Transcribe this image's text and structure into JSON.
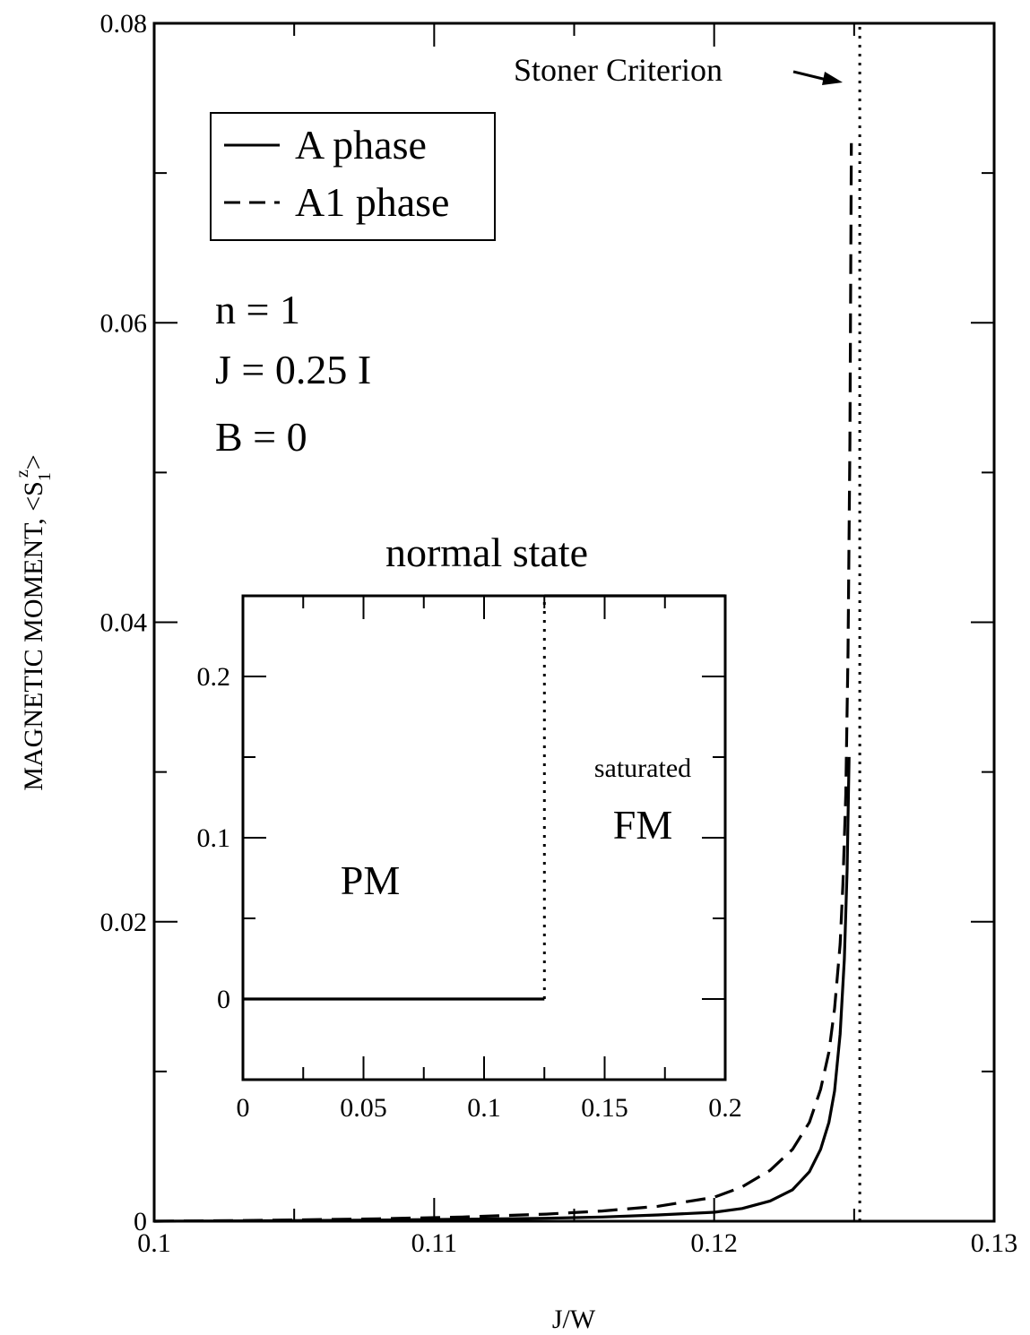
{
  "chart_data": [
    {
      "type": "line",
      "xlabel": "J/W",
      "ylabel": "MAGNETIC MOMENT, <S",
      "ylabel_sub": "1",
      "ylabel_sup": "z",
      "ylabel_close": ">",
      "xlim": [
        0.1,
        0.13
      ],
      "ylim": [
        0,
        0.08
      ],
      "xticks": [
        {
          "value": 0.1,
          "label": "0.1"
        },
        {
          "value": 0.11,
          "label": "0.11"
        },
        {
          "value": 0.12,
          "label": "0.12"
        },
        {
          "value": 0.13,
          "label": "0.13"
        }
      ],
      "yticks": [
        {
          "value": 0,
          "label": "0"
        },
        {
          "value": 0.02,
          "label": "0.02"
        },
        {
          "value": 0.04,
          "label": "0.04"
        },
        {
          "value": 0.06,
          "label": "0.06"
        },
        {
          "value": 0.08,
          "label": "0.08"
        }
      ],
      "grid": false,
      "legend": {
        "placement": "top-left",
        "entries": [
          {
            "label": "A phase",
            "style": "solid"
          },
          {
            "label": "A1 phase",
            "style": "dashed"
          }
        ]
      },
      "series": [
        {
          "name": "A phase",
          "style": "solid",
          "x": [
            0.1,
            0.104,
            0.108,
            0.111,
            0.114,
            0.116,
            0.118,
            0.12,
            0.121,
            0.122,
            0.1228,
            0.1234,
            0.1238,
            0.1241,
            0.1243,
            0.1245,
            0.12465,
            0.12475,
            0.12482
          ],
          "y": [
            0,
            3e-05,
            8e-05,
            0.00013,
            0.0002,
            0.00028,
            0.00042,
            0.0006,
            0.00085,
            0.00135,
            0.0021,
            0.0033,
            0.0048,
            0.0066,
            0.0087,
            0.0125,
            0.0175,
            0.0235,
            0.031
          ]
        },
        {
          "name": "A1 phase",
          "style": "dashed",
          "x": [
            0.1,
            0.104,
            0.108,
            0.111,
            0.114,
            0.116,
            0.118,
            0.12,
            0.121,
            0.122,
            0.1228,
            0.1234,
            0.1238,
            0.1241,
            0.1243,
            0.1245,
            0.1246,
            0.1247,
            0.12478,
            0.12485,
            0.1249
          ],
          "y": [
            0,
            6e-05,
            0.00016,
            0.00028,
            0.00047,
            0.00068,
            0.001,
            0.0016,
            0.0023,
            0.0034,
            0.0048,
            0.0066,
            0.0088,
            0.0113,
            0.0142,
            0.0185,
            0.0225,
            0.0285,
            0.038,
            0.052,
            0.072
          ]
        },
        {
          "name": "Stoner Criterion",
          "style": "dotted",
          "x": [
            0.1252,
            0.1252
          ],
          "y": [
            0,
            0.08
          ]
        }
      ],
      "annotations": [
        {
          "text": "Stoner Criterion",
          "arrow_to": [
            0.1252,
            0.0765
          ]
        },
        {
          "text": "n = 1"
        },
        {
          "text": "J = 0.25 I"
        },
        {
          "text": "B = 0"
        }
      ]
    },
    {
      "type": "line",
      "title": "normal state",
      "xlim": [
        0,
        0.2
      ],
      "ylim": [
        -0.05,
        0.25
      ],
      "xticks": [
        {
          "value": 0,
          "label": "0"
        },
        {
          "value": 0.05,
          "label": "0.05"
        },
        {
          "value": 0.1,
          "label": "0.1"
        },
        {
          "value": 0.15,
          "label": "0.15"
        },
        {
          "value": 0.2,
          "label": "0.2"
        }
      ],
      "yticks": [
        {
          "value": 0,
          "label": "0"
        },
        {
          "value": 0.1,
          "label": "0.1"
        },
        {
          "value": 0.2,
          "label": "0.2"
        }
      ],
      "grid": false,
      "series": [
        {
          "name": "PM",
          "style": "solid",
          "x": [
            0,
            0.125
          ],
          "y": [
            0,
            0
          ]
        },
        {
          "name": "FM",
          "style": "solid",
          "x": [
            0.125,
            0.2
          ],
          "y": [
            0.25,
            0.25
          ]
        },
        {
          "name": "transition",
          "style": "dotted",
          "x": [
            0.125,
            0.125
          ],
          "y": [
            0,
            0.25
          ]
        }
      ],
      "annotations": [
        {
          "text": "PM"
        },
        {
          "text": "saturated"
        },
        {
          "text": "FM"
        }
      ]
    }
  ]
}
